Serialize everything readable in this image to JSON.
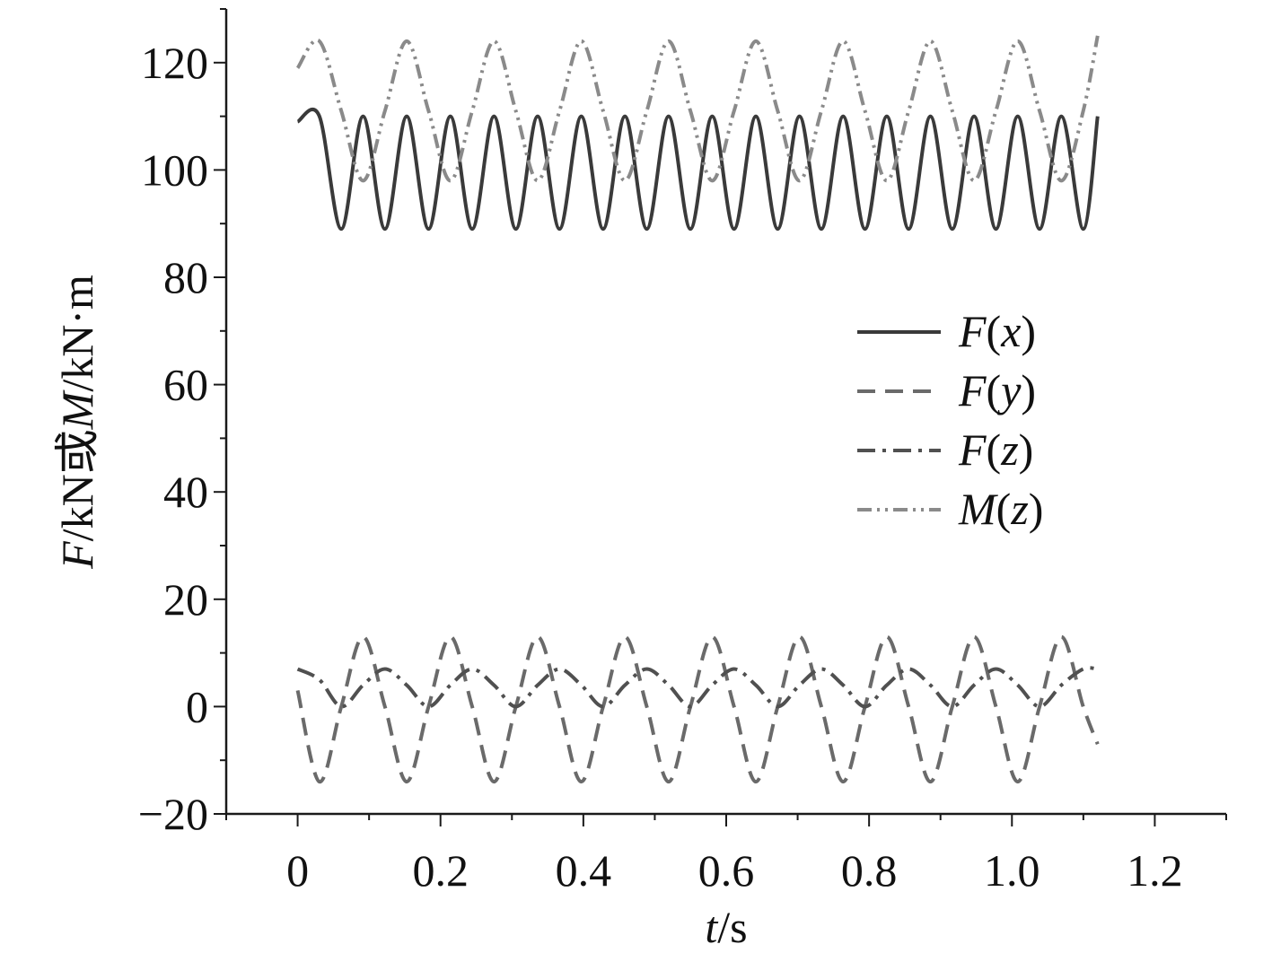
{
  "chart_data": {
    "type": "line",
    "xlabel": {
      "var": "t",
      "unit": "/s"
    },
    "ylabel": {
      "var1": "F",
      "mid": "/kN或",
      "var2": "M",
      "unit": "/kN·m"
    },
    "xlim": [
      -0.1,
      1.3
    ],
    "ylim": [
      -20,
      130
    ],
    "x_ticks": [
      0,
      0.2,
      0.4,
      0.6,
      0.8,
      1.0,
      1.2
    ],
    "x_tick_labels": [
      "0",
      "0.2",
      "0.4",
      "0.6",
      "0.8",
      "1.0",
      "1.2"
    ],
    "y_ticks": [
      -20,
      0,
      20,
      40,
      60,
      80,
      100,
      120
    ],
    "y_tick_labels": [
      "−20",
      "0",
      "20",
      "40",
      "60",
      "80",
      "100",
      "120"
    ],
    "grid": false,
    "legend_position": "right-middle",
    "series": [
      {
        "name_var": "F",
        "name_arg": "x",
        "style": "solid",
        "color": "#3a3a3a",
        "x": [
          0,
          0.0305,
          0.0611,
          0.0916,
          0.1222,
          0.1527,
          0.1833,
          0.2138,
          0.2444,
          0.2749,
          0.3055,
          0.336,
          0.3666,
          0.3971,
          0.4277,
          0.4582,
          0.4888,
          0.5193,
          0.5499,
          0.5804,
          0.611,
          0.6415,
          0.6721,
          0.7026,
          0.7332,
          0.7637,
          0.7943,
          0.8248,
          0.8554,
          0.8859,
          0.9165,
          0.947,
          0.9776,
          1.0081,
          1.0387,
          1.0692,
          1.0998,
          1.12
        ],
        "y": [
          109,
          110,
          89,
          110,
          89,
          110,
          89,
          110,
          89,
          110,
          89,
          110,
          89,
          110,
          89,
          110,
          89,
          110,
          89,
          110,
          89,
          110,
          89,
          110,
          89,
          110,
          89,
          110,
          89,
          110,
          89,
          110,
          89,
          110,
          89,
          110,
          89,
          110
        ]
      },
      {
        "name_var": "F",
        "name_arg": "y",
        "style": "dashed",
        "color": "#6a6a6a",
        "x": [
          0,
          0.0305,
          0.0611,
          0.0916,
          0.1222,
          0.1527,
          0.1833,
          0.2138,
          0.2444,
          0.2749,
          0.3055,
          0.336,
          0.3666,
          0.3971,
          0.4277,
          0.4582,
          0.4888,
          0.5193,
          0.5499,
          0.5804,
          0.611,
          0.6415,
          0.6721,
          0.7026,
          0.7332,
          0.7637,
          0.7943,
          0.8248,
          0.8554,
          0.8859,
          0.9165,
          0.947,
          0.9776,
          1.0081,
          1.0387,
          1.0692,
          1.0998,
          1.12
        ],
        "y": [
          3,
          -14,
          0,
          13,
          0,
          -14,
          0,
          13,
          0,
          -14,
          0,
          13,
          0,
          -14,
          0,
          13,
          0,
          -14,
          0,
          13,
          0,
          -14,
          0,
          13,
          0,
          -14,
          0,
          13,
          0,
          -14,
          0,
          13,
          0,
          -14,
          0,
          13,
          0,
          -7
        ]
      },
      {
        "name_var": "F",
        "name_arg": "z",
        "style": "dashdot",
        "color": "#505050",
        "x": [
          0,
          0.0305,
          0.0611,
          0.0916,
          0.1222,
          0.1527,
          0.1833,
          0.2138,
          0.2444,
          0.2749,
          0.3055,
          0.336,
          0.3666,
          0.3971,
          0.4277,
          0.4582,
          0.4888,
          0.5193,
          0.5499,
          0.5804,
          0.611,
          0.6415,
          0.6721,
          0.7026,
          0.7332,
          0.7637,
          0.7943,
          0.8248,
          0.8554,
          0.8859,
          0.9165,
          0.947,
          0.9776,
          1.0081,
          1.0387,
          1.0692,
          1.0998,
          1.12
        ],
        "y": [
          7,
          5,
          0,
          4,
          7,
          4,
          0,
          4,
          7,
          4,
          0,
          4,
          7,
          4,
          0,
          4,
          7,
          4,
          0,
          4,
          7,
          4,
          0,
          4,
          7,
          4,
          0,
          4,
          7,
          4,
          0,
          4,
          7,
          4,
          0,
          4,
          7,
          7
        ]
      },
      {
        "name_var": "M",
        "name_arg": "z",
        "style": "dashdotdot",
        "color": "#8a8a8a",
        "x": [
          0,
          0.0305,
          0.0611,
          0.0916,
          0.1222,
          0.1527,
          0.1833,
          0.2138,
          0.2444,
          0.2749,
          0.3055,
          0.336,
          0.3666,
          0.3971,
          0.4277,
          0.4582,
          0.4888,
          0.5193,
          0.5499,
          0.5804,
          0.611,
          0.6415,
          0.6721,
          0.7026,
          0.7332,
          0.7637,
          0.7943,
          0.8248,
          0.8554,
          0.8859,
          0.9165,
          0.947,
          0.9776,
          1.0081,
          1.0387,
          1.0692,
          1.0998,
          1.12
        ],
        "y": [
          119,
          124,
          111,
          98,
          111,
          124,
          111,
          98,
          111,
          124,
          111,
          98,
          111,
          124,
          111,
          98,
          111,
          124,
          111,
          98,
          111,
          124,
          111,
          98,
          111,
          124,
          111,
          98,
          111,
          124,
          111,
          98,
          111,
          124,
          111,
          98,
          111,
          125
        ]
      }
    ]
  }
}
